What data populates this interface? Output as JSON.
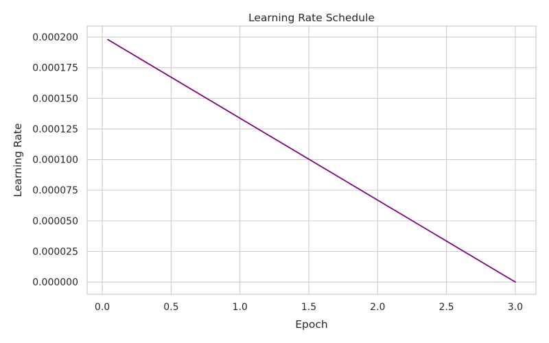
{
  "chart_data": {
    "type": "line",
    "title": "Learning Rate Schedule",
    "xlabel": "Epoch",
    "ylabel": "Learning Rate",
    "xlim": [
      -0.11,
      3.15
    ],
    "ylim": [
      -1e-05,
      0.000209
    ],
    "xticks": [
      0.0,
      0.5,
      1.0,
      1.5,
      2.0,
      2.5,
      3.0
    ],
    "xtick_labels": [
      "0.0",
      "0.5",
      "1.0",
      "1.5",
      "2.0",
      "2.5",
      "3.0"
    ],
    "yticks": [
      0.0,
      2.5e-05,
      5e-05,
      7.5e-05,
      0.0001,
      0.000125,
      0.00015,
      0.000175,
      0.0002
    ],
    "ytick_labels": [
      "0.000000",
      "0.000025",
      "0.000050",
      "0.000075",
      "0.000100",
      "0.000125",
      "0.000150",
      "0.000175",
      "0.000200"
    ],
    "grid": true,
    "series": [
      {
        "color": "#800080",
        "x": [
          0.04,
          3.0
        ],
        "y": [
          0.000198,
          0.0
        ]
      }
    ]
  }
}
